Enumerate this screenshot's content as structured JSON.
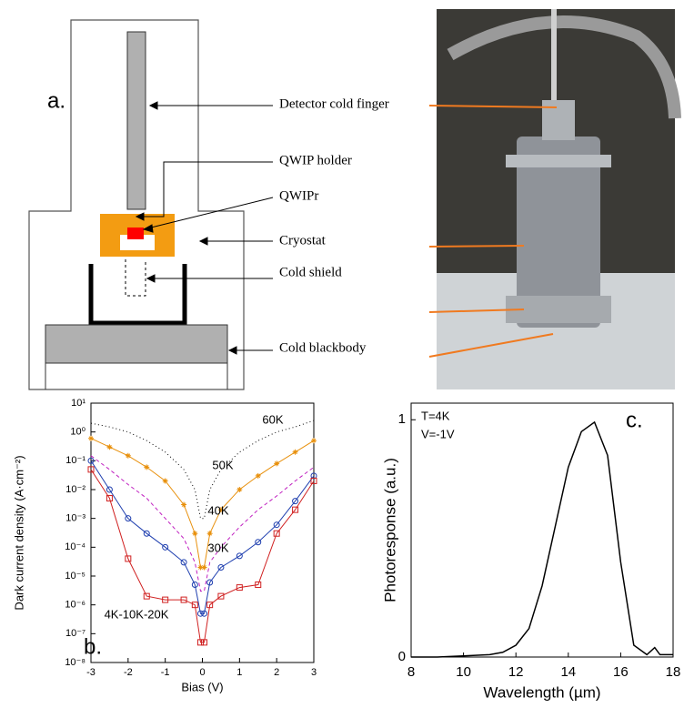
{
  "diagram": {
    "label": "a.",
    "parts": [
      "Detector cold finger",
      "QWIP holder",
      "QWIPr",
      "Cryostat",
      "Cold shield",
      "Cold blackbody"
    ]
  },
  "chart_data": [
    {
      "type": "line",
      "label": "b.",
      "xlabel": "Bias (V)",
      "ylabel": "Dark current density (A·cm⁻²)",
      "log_y": true,
      "xlim": [
        -3,
        3
      ],
      "xticks": [
        -3,
        -2,
        -1,
        0,
        1,
        2,
        3
      ],
      "ylim": [
        1e-08,
        10
      ],
      "yticks": [
        {
          "value": 1e-08,
          "label": "10⁻⁸"
        },
        {
          "value": 1e-07,
          "label": "10⁻⁷"
        },
        {
          "value": 1e-06,
          "label": "10⁻⁶"
        },
        {
          "value": 1e-05,
          "label": "10⁻⁵"
        },
        {
          "value": 0.0001,
          "label": "10⁻⁴"
        },
        {
          "value": 0.001,
          "label": "10⁻³"
        },
        {
          "value": 0.01,
          "label": "10⁻²"
        },
        {
          "value": 0.1,
          "label": "10⁻¹"
        },
        {
          "value": 1,
          "label": "10⁰"
        },
        {
          "value": 10,
          "label": "10¹"
        }
      ],
      "x": [
        -3,
        -2.5,
        -2,
        -1.5,
        -1,
        -0.5,
        -0.2,
        -0.05,
        0.05,
        0.2,
        0.5,
        1,
        1.5,
        2,
        2.5,
        3
      ],
      "series": [
        {
          "name": "60K",
          "color": "#000000",
          "style": "dotted",
          "values": [
            2,
            1.5,
            1,
            0.5,
            0.2,
            0.05,
            0.01,
            0.001,
            0.001,
            0.01,
            0.05,
            0.2,
            0.5,
            1,
            1.5,
            2.5
          ]
        },
        {
          "name": "50K",
          "color": "#e8900c",
          "style": "star",
          "values": [
            0.6,
            0.3,
            0.15,
            0.06,
            0.02,
            0.003,
            0.0003,
            2e-05,
            2e-05,
            0.0003,
            0.002,
            0.01,
            0.03,
            0.08,
            0.2,
            0.5
          ]
        },
        {
          "name": "40K",
          "color": "#c020c0",
          "style": "dashed",
          "values": [
            0.15,
            0.05,
            0.015,
            0.005,
            0.001,
            0.0002,
            3e-05,
            3e-06,
            3e-06,
            3e-05,
            0.0001,
            0.0005,
            0.002,
            0.006,
            0.02,
            0.06
          ]
        },
        {
          "name": "30K",
          "color": "#1f3faf",
          "style": "circle",
          "values": [
            0.1,
            0.01,
            0.001,
            0.0003,
            0.0001,
            3e-05,
            5e-06,
            5e-07,
            5e-07,
            6e-06,
            2e-05,
            5e-05,
            0.00015,
            0.0006,
            0.004,
            0.03
          ]
        },
        {
          "name": "4K-10K-20K",
          "color": "#d02020",
          "style": "square",
          "values": [
            0.05,
            0.005,
            4e-05,
            2e-06,
            1.5e-06,
            1.5e-06,
            1e-06,
            5e-08,
            5e-08,
            1e-06,
            2e-06,
            4e-06,
            5e-06,
            0.0003,
            0.002,
            0.02
          ]
        }
      ]
    },
    {
      "type": "line",
      "label": "c.",
      "xlabel": "Wavelength (µm)",
      "ylabel": "Photoresponse (a.u.)",
      "annotations": [
        "T=4K",
        "V=-1V"
      ],
      "xlim": [
        8,
        18
      ],
      "xticks": [
        8,
        10,
        12,
        14,
        16,
        18
      ],
      "ylim": [
        0,
        1.07
      ],
      "yticks": [
        0,
        1
      ],
      "x": [
        8,
        9,
        10,
        11,
        11.5,
        12,
        12.5,
        13,
        13.5,
        14,
        14.5,
        15,
        15.5,
        16,
        16.5,
        17,
        17.3,
        17.5,
        18
      ],
      "series": [
        {
          "name": "",
          "color": "#000000",
          "style": "solid",
          "values": [
            0,
            0,
            0.005,
            0.01,
            0.02,
            0.05,
            0.12,
            0.3,
            0.55,
            0.8,
            0.95,
            0.99,
            0.85,
            0.4,
            0.05,
            0.01,
            0.04,
            0.01,
            0.01
          ]
        }
      ]
    }
  ]
}
